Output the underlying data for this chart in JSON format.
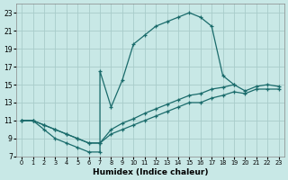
{
  "xlabel": "Humidex (Indice chaleur)",
  "background_color": "#c8e8e6",
  "grid_color": "#a8ccca",
  "line_color": "#1a6b6b",
  "xlim": [
    -0.5,
    23.5
  ],
  "ylim": [
    7,
    24
  ],
  "xticks": [
    0,
    1,
    2,
    3,
    4,
    5,
    6,
    7,
    8,
    9,
    10,
    11,
    12,
    13,
    14,
    15,
    16,
    17,
    18,
    19,
    20,
    21,
    22,
    23
  ],
  "yticks": [
    7,
    9,
    11,
    13,
    15,
    17,
    19,
    21,
    23
  ],
  "curve_x": [
    0,
    1,
    2,
    3,
    4,
    5,
    6,
    7,
    7,
    8,
    9,
    10,
    11,
    12,
    13,
    14,
    15,
    16,
    17,
    18,
    19
  ],
  "curve_y": [
    11,
    11,
    10,
    9,
    8.5,
    8,
    7.5,
    7.5,
    16.5,
    12.5,
    15.5,
    19.5,
    20.5,
    21.5,
    22,
    22.5,
    23,
    22.5,
    21.5,
    16,
    15
  ],
  "lower1_x": [
    0,
    1,
    2,
    3,
    4,
    5,
    6,
    7,
    8,
    9,
    10,
    11,
    12,
    13,
    14,
    15,
    16,
    17,
    18,
    19,
    20,
    21,
    22,
    23
  ],
  "lower1_y": [
    11,
    11,
    10.5,
    10,
    9.5,
    9,
    8.5,
    8.5,
    9.5,
    10,
    10.5,
    11,
    11.5,
    12,
    12.5,
    13,
    13,
    13.5,
    13.8,
    14.2,
    14,
    14.5,
    14.5,
    14.5
  ],
  "lower2_x": [
    0,
    1,
    2,
    3,
    4,
    5,
    6,
    7,
    8,
    9,
    10,
    11,
    12,
    13,
    14,
    15,
    16,
    17,
    18,
    19,
    20,
    21,
    22,
    23
  ],
  "lower2_y": [
    11,
    11,
    10.5,
    10,
    9.5,
    9,
    8.5,
    8.5,
    10,
    10.7,
    11.2,
    11.8,
    12.3,
    12.8,
    13.3,
    13.8,
    14,
    14.5,
    14.7,
    15,
    14.3,
    14.8,
    15,
    14.8
  ]
}
